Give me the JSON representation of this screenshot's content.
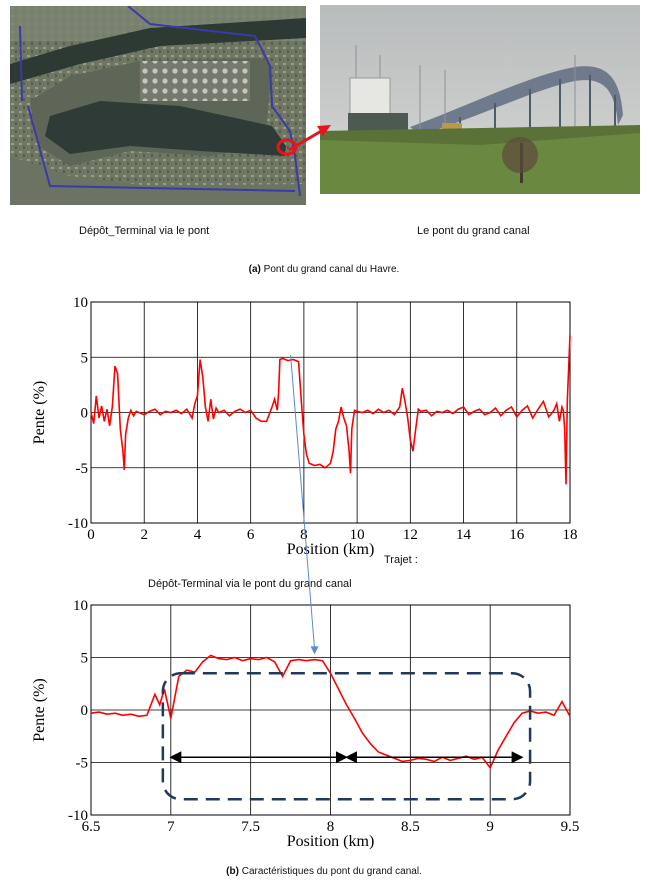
{
  "photos": {
    "map_alt": "Satellite map",
    "bridge_alt": "Bridge photo"
  },
  "captions": {
    "left_photo": "Dépôt_Terminal via  le pont",
    "right_photo": "Le pont du grand canal",
    "fig_a_label": "(a)",
    "fig_a_text": " Pont du grand canal du Havre.",
    "trajet": "Trajet :",
    "route": "Dépôt-Terminal via le pont du grand canal",
    "fig_b_label": "(b)",
    "fig_b_text": " Caractéristiques du pont du grand canal."
  },
  "colors": {
    "series": "#ff0000",
    "route_line": "#3a3aa8",
    "marker": "#e8141b",
    "dashed_box": "#22395a",
    "pointer": "#5b8bd0"
  },
  "chart_data": [
    {
      "type": "line",
      "xlabel": "Position (km)",
      "ylabel": "Pente (%)",
      "xlim": [
        0,
        18
      ],
      "ylim": [
        -10,
        10
      ],
      "xticks": [
        "0",
        "2",
        "4",
        "6",
        "8",
        "10",
        "12",
        "14",
        "16",
        "18"
      ],
      "yticks": [
        "10",
        "5",
        "0",
        "-5",
        "-10"
      ],
      "grid": true,
      "series": [
        {
          "x": [
            0,
            0.1,
            0.2,
            0.3,
            0.4,
            0.5,
            0.6,
            0.7,
            0.8,
            0.9,
            1.0,
            1.1,
            1.2,
            1.25,
            1.3,
            1.4,
            1.5,
            1.6,
            1.7,
            1.8,
            2.0,
            2.2,
            2.4,
            2.6,
            2.8,
            3.0,
            3.2,
            3.4,
            3.6,
            3.8,
            3.9,
            4.0,
            4.1,
            4.2,
            4.3,
            4.4,
            4.5,
            4.6,
            4.7,
            4.8,
            5.0,
            5.2,
            5.4,
            5.6,
            5.8,
            6.0,
            6.2,
            6.4,
            6.6,
            6.8,
            6.9,
            7.0,
            7.05,
            7.1,
            7.2,
            7.4,
            7.6,
            7.8,
            7.9,
            8.0,
            8.1,
            8.2,
            8.4,
            8.6,
            8.8,
            9.0,
            9.1,
            9.2,
            9.3,
            9.4,
            9.5,
            9.6,
            9.7,
            9.75,
            9.8,
            9.9,
            10.0,
            10.2,
            10.4,
            10.6,
            10.8,
            11.0,
            11.2,
            11.4,
            11.6,
            11.7,
            11.8,
            11.9,
            12.0,
            12.1,
            12.2,
            12.3,
            12.4,
            12.6,
            12.8,
            13.0,
            13.2,
            13.4,
            13.6,
            13.8,
            14.0,
            14.2,
            14.4,
            14.6,
            14.8,
            15.0,
            15.2,
            15.4,
            15.6,
            15.8,
            16.0,
            16.2,
            16.4,
            16.6,
            16.8,
            17.0,
            17.2,
            17.4,
            17.5,
            17.6,
            17.7,
            17.75,
            17.8,
            17.85,
            17.9,
            18.0
          ],
          "y": [
            0,
            -1,
            1.5,
            -0.5,
            0.6,
            -0.8,
            0.3,
            -1.2,
            0.5,
            4.2,
            3.5,
            -1.5,
            -3.5,
            -5.2,
            -2,
            -0.5,
            0.2,
            -0.3,
            0.1,
            0,
            -0.2,
            0.1,
            0.3,
            -0.2,
            0.1,
            0,
            0.2,
            -0.1,
            0.3,
            -0.5,
            0.8,
            1.5,
            4.8,
            3.2,
            0.5,
            -0.8,
            1.2,
            -0.6,
            0.4,
            0,
            0.2,
            -0.3,
            0.1,
            0.3,
            0,
            0.2,
            -0.5,
            -0.8,
            -0.8,
            0.5,
            1.2,
            0.2,
            1.8,
            4.8,
            4.9,
            4.7,
            4.8,
            4.6,
            1.2,
            -2,
            -3.8,
            -4.6,
            -4.8,
            -4.7,
            -5.0,
            -4.6,
            -3.5,
            -1.5,
            -0.8,
            0.5,
            -0.5,
            -1.2,
            -3.5,
            -5.5,
            -1.5,
            0.2,
            0.1,
            0,
            0.2,
            -0.1,
            0.3,
            0,
            0.2,
            -0.2,
            0.5,
            2.2,
            1.0,
            -0.5,
            -2.5,
            -3.5,
            -1.5,
            0.3,
            0.1,
            0.2,
            -0.3,
            0.1,
            0,
            0.2,
            -0.1,
            0.3,
            0.5,
            -0.2,
            0.1,
            0.3,
            -0.2,
            0,
            0.4,
            -0.3,
            0.2,
            0.5,
            -0.4,
            0.2,
            0.6,
            -0.5,
            0.3,
            1.0,
            -0.4,
            0.2,
            0.8,
            -0.8,
            0.5,
            0.2,
            -1.5,
            -6.5,
            1.0,
            7.0
          ]
        }
      ]
    },
    {
      "type": "line",
      "xlabel": "Position (km)",
      "ylabel": "Pente (%)",
      "xlim": [
        6.5,
        9.5
      ],
      "ylim": [
        -10,
        10
      ],
      "xticks": [
        "6.5",
        "7",
        "7.5",
        "8",
        "8.5",
        "9",
        "9.5"
      ],
      "yticks": [
        "10",
        "5",
        "0",
        "-5",
        "-10"
      ],
      "grid": true,
      "series": [
        {
          "x": [
            6.5,
            6.55,
            6.6,
            6.65,
            6.7,
            6.75,
            6.8,
            6.85,
            6.9,
            6.93,
            6.96,
            7.0,
            7.05,
            7.1,
            7.15,
            7.2,
            7.25,
            7.3,
            7.35,
            7.4,
            7.45,
            7.5,
            7.55,
            7.6,
            7.65,
            7.7,
            7.75,
            7.8,
            7.85,
            7.9,
            7.95,
            8.0,
            8.05,
            8.1,
            8.15,
            8.2,
            8.25,
            8.3,
            8.35,
            8.4,
            8.45,
            8.5,
            8.55,
            8.6,
            8.65,
            8.7,
            8.75,
            8.8,
            8.85,
            8.9,
            8.95,
            9.0,
            9.05,
            9.1,
            9.15,
            9.2,
            9.25,
            9.3,
            9.35,
            9.4,
            9.45,
            9.5
          ],
          "y": [
            -0.3,
            -0.2,
            -0.4,
            -0.3,
            -0.5,
            -0.4,
            -0.6,
            -0.5,
            1.5,
            0.5,
            2.0,
            -0.8,
            3.2,
            3.8,
            3.6,
            4.6,
            5.2,
            4.9,
            4.8,
            5.0,
            4.7,
            4.9,
            4.8,
            5.0,
            4.6,
            3.2,
            4.7,
            4.8,
            4.7,
            4.8,
            4.7,
            3.5,
            2.0,
            0.5,
            -0.8,
            -2.2,
            -3.2,
            -4.0,
            -4.3,
            -4.6,
            -4.9,
            -4.8,
            -4.6,
            -4.7,
            -4.9,
            -4.5,
            -4.8,
            -4.6,
            -4.4,
            -4.7,
            -4.5,
            -5.5,
            -3.8,
            -2.5,
            -1.2,
            -0.3,
            -0.1,
            -0.3,
            -0.2,
            -0.5,
            0.8,
            -0.6
          ]
        }
      ]
    }
  ],
  "annotations": {
    "arrow_left_x": [
      7.0,
      8.1
    ],
    "arrow_right_x": [
      8.1,
      9.2
    ],
    "arrow_y": -4.5,
    "box_x": [
      6.95,
      9.25
    ],
    "box_y": [
      -8.5,
      3.5
    ]
  }
}
